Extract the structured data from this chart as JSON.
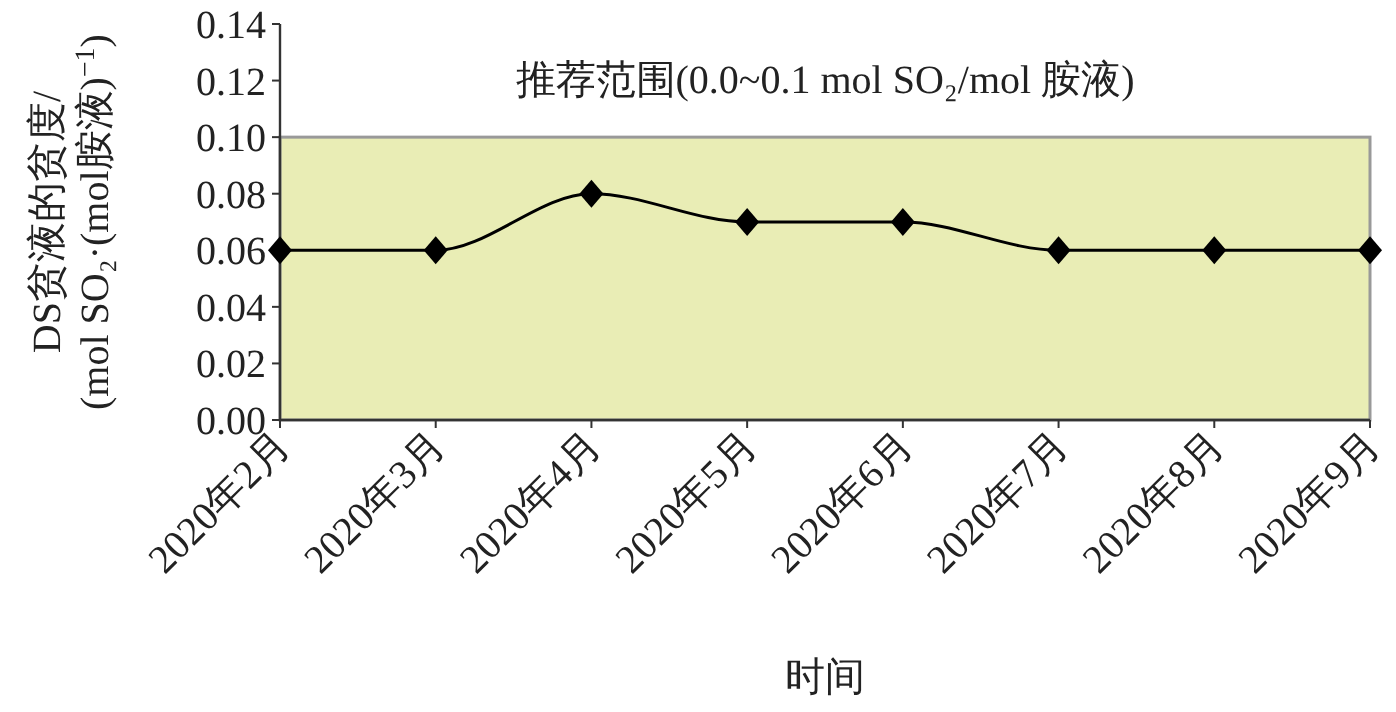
{
  "chart_data": {
    "type": "line",
    "xlabel": "时间",
    "ylabel": "DS贫液的贫度/\n(mol SO₂·(mol胺液)$^{−1}$)",
    "categories": [
      "2020年2月",
      "2020年3月",
      "2020年4月",
      "2020年5月",
      "2020年6月",
      "2020年7月",
      "2020年8月",
      "2020年9月"
    ],
    "series": [
      {
        "color": "#000000",
        "values": [
          0.06,
          0.06,
          0.08,
          0.07,
          0.07,
          0.06,
          0.06,
          0.06
        ]
      }
    ],
    "ylim": [
      0,
      0.14
    ],
    "yticks": [
      {
        "value": 0,
        "label": "0.00"
      },
      {
        "value": 0.02,
        "label": "0.02"
      },
      {
        "value": 0.04,
        "label": "0.04"
      },
      {
        "value": 0.06,
        "label": "0.06"
      },
      {
        "value": 0.08,
        "label": "0.08"
      },
      {
        "value": 0.1,
        "label": "0.10"
      },
      {
        "value": 0.12,
        "label": "0.12"
      },
      {
        "value": 0.14,
        "label": "0.14"
      }
    ],
    "bands": [
      {
        "axis": "y",
        "from": 0,
        "to": 0.1,
        "label": "推荐范围(0.0~0.1 mol SO₂/mol 胺液)",
        "color": "#e9edb5"
      }
    ],
    "marker": "diamond",
    "line_style": "solid",
    "grid": false
  }
}
